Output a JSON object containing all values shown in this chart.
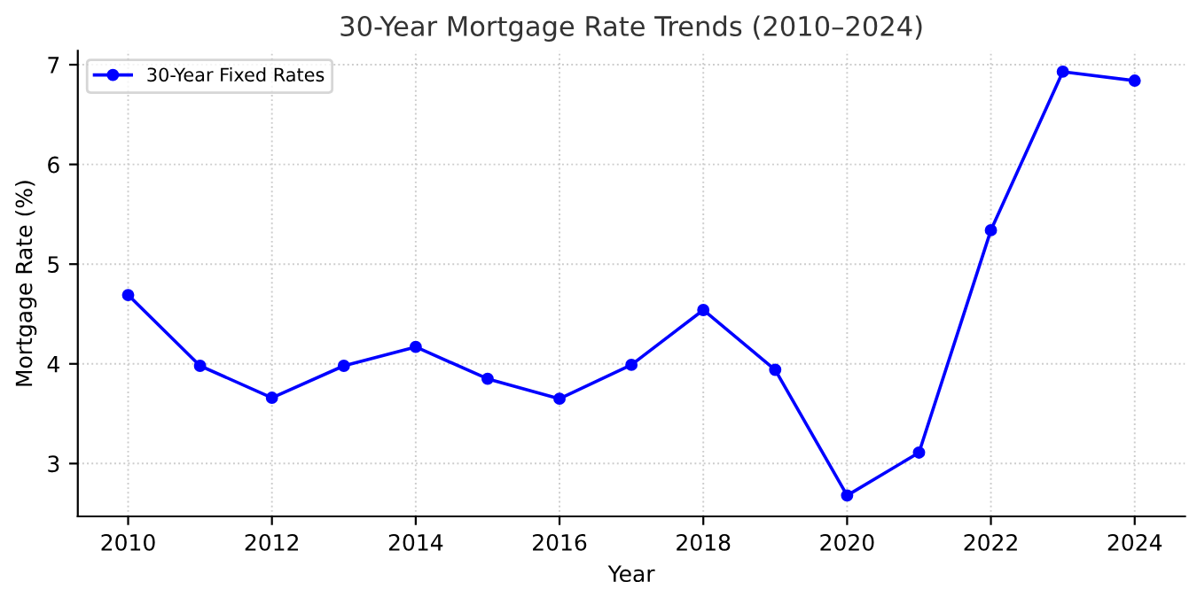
{
  "chart_data": {
    "type": "line",
    "title": "30-Year Mortgage Rate Trends (2010–2024)",
    "xlabel": "Year",
    "ylabel": "Mortgage Rate (%)",
    "x": [
      2010,
      2011,
      2012,
      2013,
      2014,
      2015,
      2016,
      2017,
      2018,
      2019,
      2020,
      2021,
      2022,
      2023,
      2024
    ],
    "series": [
      {
        "name": "30-Year Fixed Rates",
        "color": "#0000ff",
        "values": [
          4.69,
          3.98,
          3.66,
          3.98,
          4.17,
          3.85,
          3.65,
          3.99,
          4.54,
          3.94,
          2.68,
          3.11,
          5.34,
          6.93,
          6.84
        ]
      }
    ],
    "xlim": [
      2009.3,
      2024.7
    ],
    "xticks": [
      2010,
      2012,
      2014,
      2016,
      2018,
      2020,
      2022,
      2024
    ],
    "ylim": [
      2.47,
      7.14
    ],
    "yticks": [
      3,
      4,
      5,
      6,
      7
    ],
    "grid": true,
    "legend": "top left",
    "marker": "circle",
    "line_style": "solid"
  }
}
